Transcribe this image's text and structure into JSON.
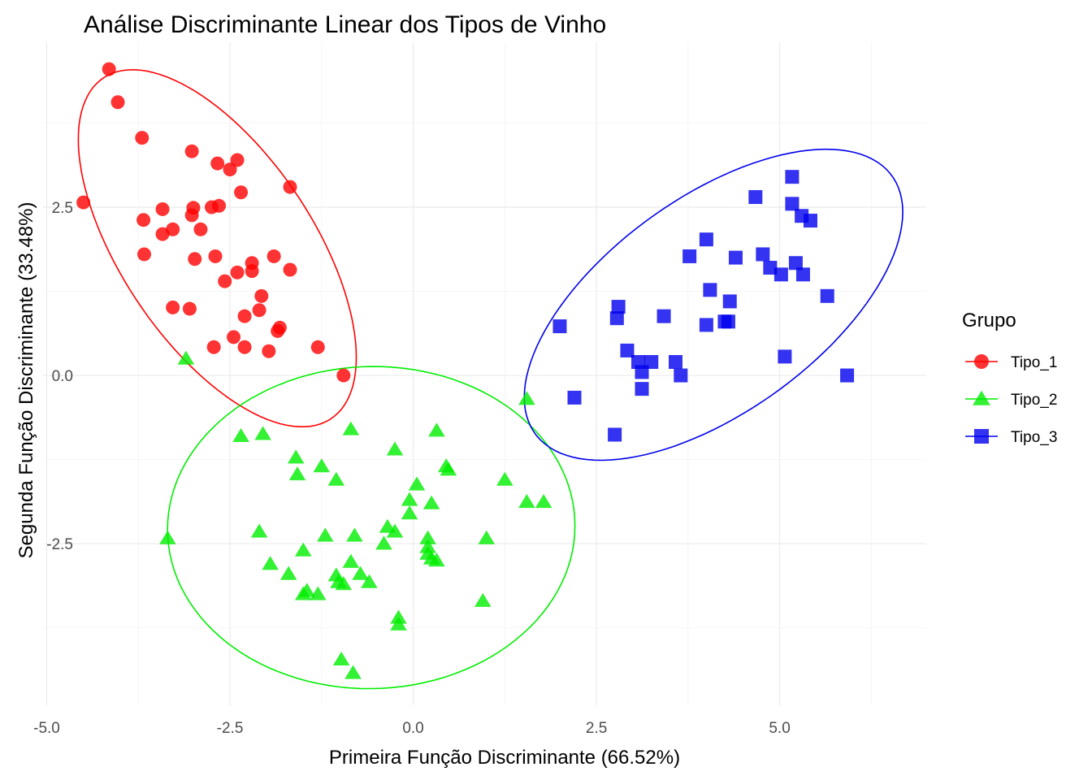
{
  "chart_data": {
    "type": "scatter",
    "title": "Análise Discriminante Linear dos Tipos de Vinho",
    "xlabel": "Primeira Função Discriminante (66.52%)",
    "ylabel": "Segunda Função Discriminante (33.48%)",
    "xlim": [
      -5.05,
      7.0
    ],
    "ylim": [
      -4.9,
      4.95
    ],
    "x_ticks": [
      -5,
      -2.5,
      0,
      2.5,
      5
    ],
    "x_tick_labels": [
      "-5.0",
      "-2.5",
      "0.0",
      "2.5",
      "5.0"
    ],
    "y_ticks": [
      -2.5,
      0,
      2.5
    ],
    "y_tick_labels": [
      "-2.5",
      "0.0",
      "2.5"
    ],
    "grid": true,
    "legend": {
      "title": "Grupo",
      "position": "right"
    },
    "ellipses": true,
    "series": [
      {
        "name": "Tipo_1",
        "color": "#ff0000",
        "marker": "circle",
        "points": [
          [
            -4.15,
            4.55
          ],
          [
            -4.03,
            4.06
          ],
          [
            -3.7,
            3.53
          ],
          [
            -3.02,
            3.33
          ],
          [
            -2.67,
            3.15
          ],
          [
            -2.4,
            3.2
          ],
          [
            -2.5,
            3.06
          ],
          [
            -2.35,
            2.72
          ],
          [
            -1.68,
            2.8
          ],
          [
            -4.5,
            2.57
          ],
          [
            -3.42,
            2.47
          ],
          [
            -3.0,
            2.49
          ],
          [
            -2.75,
            2.5
          ],
          [
            -2.65,
            2.52
          ],
          [
            -3.02,
            2.38
          ],
          [
            -3.68,
            2.31
          ],
          [
            -3.28,
            2.17
          ],
          [
            -3.42,
            2.1
          ],
          [
            -2.9,
            2.17
          ],
          [
            -3.67,
            1.8
          ],
          [
            -2.98,
            1.73
          ],
          [
            -2.7,
            1.77
          ],
          [
            -1.9,
            1.77
          ],
          [
            -2.2,
            1.67
          ],
          [
            -2.2,
            1.55
          ],
          [
            -2.4,
            1.53
          ],
          [
            -2.57,
            1.4
          ],
          [
            -1.68,
            1.57
          ],
          [
            -2.07,
            1.18
          ],
          [
            -3.28,
            1.01
          ],
          [
            -3.05,
            0.99
          ],
          [
            -2.1,
            0.97
          ],
          [
            -2.3,
            0.88
          ],
          [
            -1.85,
            0.66
          ],
          [
            -1.82,
            0.71
          ],
          [
            -2.45,
            0.57
          ],
          [
            -2.3,
            0.42
          ],
          [
            -2.72,
            0.42
          ],
          [
            -1.97,
            0.36
          ],
          [
            -1.3,
            0.42
          ],
          [
            -0.95,
            0.0
          ]
        ]
      },
      {
        "name": "Tipo_2",
        "color": "#00ee00",
        "marker": "triangle",
        "points": [
          [
            -3.1,
            0.25
          ],
          [
            1.55,
            -0.35
          ],
          [
            -2.35,
            -0.9
          ],
          [
            -2.05,
            -0.87
          ],
          [
            -0.85,
            -0.8
          ],
          [
            0.32,
            -0.82
          ],
          [
            -0.25,
            -1.1
          ],
          [
            -1.6,
            -1.22
          ],
          [
            -1.25,
            -1.35
          ],
          [
            0.45,
            -1.35
          ],
          [
            0.48,
            -1.4
          ],
          [
            -1.58,
            -1.47
          ],
          [
            -1.05,
            -1.55
          ],
          [
            1.25,
            -1.55
          ],
          [
            0.05,
            -1.62
          ],
          [
            -0.05,
            -1.85
          ],
          [
            0.25,
            -1.9
          ],
          [
            1.55,
            -1.88
          ],
          [
            1.78,
            -1.88
          ],
          [
            -0.05,
            -2.05
          ],
          [
            -0.35,
            -2.25
          ],
          [
            -0.25,
            -2.32
          ],
          [
            -2.1,
            -2.32
          ],
          [
            -1.2,
            -2.38
          ],
          [
            -0.8,
            -2.38
          ],
          [
            0.2,
            -2.42
          ],
          [
            1.0,
            -2.42
          ],
          [
            -3.35,
            -2.42
          ],
          [
            -0.4,
            -2.5
          ],
          [
            0.2,
            -2.55
          ],
          [
            0.2,
            -2.65
          ],
          [
            -1.5,
            -2.6
          ],
          [
            0.32,
            -2.75
          ],
          [
            0.25,
            -2.72
          ],
          [
            -0.85,
            -2.77
          ],
          [
            -1.95,
            -2.8
          ],
          [
            -1.7,
            -2.95
          ],
          [
            -0.72,
            -2.95
          ],
          [
            -1.05,
            -2.97
          ],
          [
            -1.02,
            -3.07
          ],
          [
            -0.6,
            -3.07
          ],
          [
            -0.95,
            -3.1
          ],
          [
            -1.45,
            -3.2
          ],
          [
            -1.3,
            -3.25
          ],
          [
            -1.5,
            -3.25
          ],
          [
            0.95,
            -3.35
          ],
          [
            -0.2,
            -3.6
          ],
          [
            -0.2,
            -3.7
          ],
          [
            -0.98,
            -4.22
          ],
          [
            -0.82,
            -4.42
          ]
        ]
      },
      {
        "name": "Tipo_3",
        "color": "#0000ee",
        "marker": "square",
        "points": [
          [
            5.17,
            2.95
          ],
          [
            4.67,
            2.65
          ],
          [
            5.17,
            2.55
          ],
          [
            5.3,
            2.37
          ],
          [
            5.42,
            2.3
          ],
          [
            4.0,
            2.02
          ],
          [
            4.4,
            1.75
          ],
          [
            3.77,
            1.77
          ],
          [
            4.77,
            1.8
          ],
          [
            5.22,
            1.67
          ],
          [
            4.87,
            1.6
          ],
          [
            5.02,
            1.5
          ],
          [
            5.32,
            1.5
          ],
          [
            4.05,
            1.27
          ],
          [
            5.65,
            1.18
          ],
          [
            4.32,
            1.1
          ],
          [
            2.8,
            1.02
          ],
          [
            2.78,
            0.85
          ],
          [
            3.42,
            0.88
          ],
          [
            2.0,
            0.73
          ],
          [
            4.0,
            0.75
          ],
          [
            4.25,
            0.8
          ],
          [
            4.3,
            0.8
          ],
          [
            2.92,
            0.37
          ],
          [
            3.07,
            0.2
          ],
          [
            3.25,
            0.2
          ],
          [
            3.58,
            0.2
          ],
          [
            3.12,
            0.05
          ],
          [
            3.65,
            0.0
          ],
          [
            5.07,
            0.28
          ],
          [
            5.92,
            0.0
          ],
          [
            3.12,
            -0.2
          ],
          [
            2.2,
            -0.33
          ],
          [
            2.75,
            -0.88
          ]
        ]
      }
    ]
  }
}
